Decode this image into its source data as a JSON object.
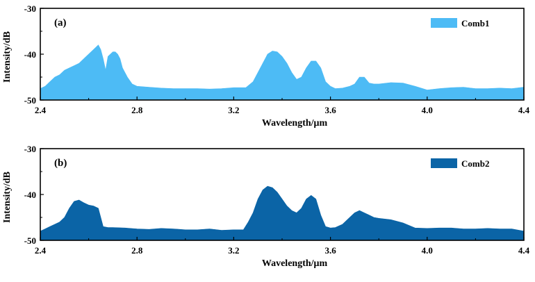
{
  "chart_data": [
    {
      "type": "area",
      "panel_label": "(a)",
      "xlabel": "Wavelength/μm",
      "ylabel": "Intensity/dB",
      "xlim": [
        2.4,
        4.4
      ],
      "ylim": [
        -50,
        -30
      ],
      "x_ticks": [
        "2.4",
        "2.8",
        "3.2",
        "3.6",
        "4.0",
        "4.4"
      ],
      "y_ticks": [
        "-30",
        "-40",
        "-50"
      ],
      "legend_position": "top-right",
      "series": [
        {
          "name": "Comb1",
          "color": "#4dbbf5",
          "x": [
            2.4,
            2.42,
            2.44,
            2.46,
            2.48,
            2.5,
            2.52,
            2.54,
            2.56,
            2.58,
            2.6,
            2.62,
            2.63,
            2.64,
            2.65,
            2.66,
            2.67,
            2.68,
            2.69,
            2.7,
            2.71,
            2.72,
            2.73,
            2.74,
            2.76,
            2.78,
            2.8,
            2.85,
            2.9,
            2.95,
            3.0,
            3.05,
            3.1,
            3.15,
            3.2,
            3.25,
            3.28,
            3.3,
            3.32,
            3.34,
            3.36,
            3.38,
            3.4,
            3.42,
            3.44,
            3.46,
            3.48,
            3.5,
            3.52,
            3.54,
            3.56,
            3.58,
            3.6,
            3.62,
            3.65,
            3.68,
            3.7,
            3.72,
            3.74,
            3.76,
            3.78,
            3.8,
            3.85,
            3.9,
            3.95,
            4.0,
            4.05,
            4.1,
            4.15,
            4.2,
            4.25,
            4.3,
            4.35,
            4.4
          ],
          "y": [
            -47.5,
            -47,
            -46,
            -45,
            -44.5,
            -43.5,
            -43,
            -42.5,
            -42,
            -41,
            -40,
            -39,
            -38.5,
            -38,
            -39,
            -41,
            -43.5,
            -40.5,
            -40,
            -39.5,
            -39.5,
            -40,
            -41,
            -43,
            -45,
            -46.5,
            -47,
            -47.2,
            -47.4,
            -47.5,
            -47.5,
            -47.5,
            -47.6,
            -47.5,
            -47.3,
            -47.3,
            -46,
            -44,
            -42,
            -40,
            -39.3,
            -39.5,
            -40.5,
            -42,
            -44,
            -45.5,
            -45,
            -43,
            -41.5,
            -41.5,
            -43,
            -46,
            -47,
            -47.5,
            -47.4,
            -47,
            -46.5,
            -45,
            -45,
            -46.3,
            -46.5,
            -46.5,
            -46.2,
            -46.3,
            -47,
            -47.8,
            -47.5,
            -47.3,
            -47.2,
            -47.5,
            -47.5,
            -47.4,
            -47.5,
            -47.2
          ]
        }
      ]
    },
    {
      "type": "area",
      "panel_label": "(b)",
      "xlabel": "Wavelength/μm",
      "ylabel": "Intensity/dB",
      "xlim": [
        2.4,
        4.4
      ],
      "ylim": [
        -50,
        -30
      ],
      "x_ticks": [
        "2.4",
        "2.8",
        "3.2",
        "3.6",
        "4.0",
        "4.4"
      ],
      "y_ticks": [
        "-30",
        "-40",
        "-50"
      ],
      "legend_position": "top-right",
      "series": [
        {
          "name": "Comb2",
          "color": "#0b64a6",
          "x": [
            2.4,
            2.42,
            2.44,
            2.46,
            2.48,
            2.5,
            2.52,
            2.54,
            2.56,
            2.58,
            2.6,
            2.62,
            2.64,
            2.65,
            2.66,
            2.68,
            2.7,
            2.75,
            2.8,
            2.85,
            2.9,
            2.95,
            3.0,
            3.05,
            3.1,
            3.15,
            3.2,
            3.24,
            3.26,
            3.28,
            3.3,
            3.32,
            3.34,
            3.36,
            3.38,
            3.4,
            3.42,
            3.44,
            3.46,
            3.48,
            3.5,
            3.52,
            3.54,
            3.56,
            3.58,
            3.6,
            3.62,
            3.65,
            3.68,
            3.7,
            3.72,
            3.74,
            3.76,
            3.78,
            3.8,
            3.85,
            3.9,
            3.95,
            4.0,
            4.05,
            4.1,
            4.15,
            4.2,
            4.25,
            4.3,
            4.35,
            4.4
          ],
          "y": [
            -48,
            -47.5,
            -47,
            -46.5,
            -46,
            -45,
            -43,
            -41.5,
            -41.2,
            -41.8,
            -42.3,
            -42.5,
            -43,
            -45,
            -47,
            -47.2,
            -47.2,
            -47.3,
            -47.5,
            -47.6,
            -47.4,
            -47.5,
            -47.7,
            -47.7,
            -47.5,
            -47.8,
            -47.7,
            -47.7,
            -46,
            -44,
            -41,
            -39,
            -38.2,
            -38.5,
            -39.5,
            -41,
            -42.5,
            -43.5,
            -44,
            -43,
            -41,
            -40.2,
            -41,
            -44.5,
            -47,
            -47.3,
            -47.2,
            -46.5,
            -45,
            -44,
            -43.5,
            -44,
            -44.5,
            -45,
            -45.2,
            -45.5,
            -46.2,
            -47.3,
            -47.4,
            -47.3,
            -47.3,
            -47.5,
            -47.5,
            -47.4,
            -47.5,
            -47.5,
            -48
          ]
        }
      ]
    }
  ]
}
